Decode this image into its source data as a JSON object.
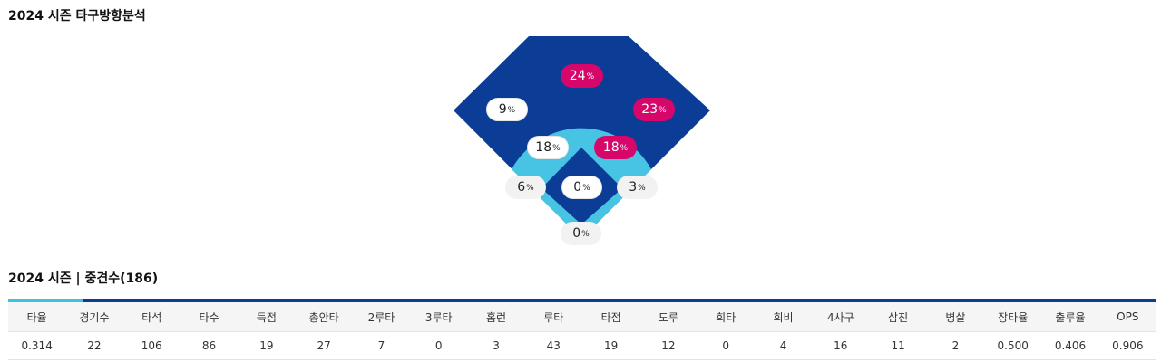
{
  "spray": {
    "title": "2024 시즌 타구방향분석",
    "unit": "%",
    "colors": {
      "outfield": "#0c3d96",
      "infield_ring": "#47c3e4",
      "infield_diamond": "#0c3d96",
      "hot_badge": "#d6066b"
    },
    "zones": [
      {
        "id": "center-field",
        "value": "24",
        "style": "hot"
      },
      {
        "id": "left-field",
        "value": "9",
        "style": "normal"
      },
      {
        "id": "right-field",
        "value": "23",
        "style": "hot"
      },
      {
        "id": "shortstop",
        "value": "18",
        "style": "normal"
      },
      {
        "id": "second-base",
        "value": "18",
        "style": "hot"
      },
      {
        "id": "third-base",
        "value": "6",
        "style": "pale"
      },
      {
        "id": "pitcher",
        "value": "0",
        "style": "normal"
      },
      {
        "id": "first-base",
        "value": "3",
        "style": "pale"
      },
      {
        "id": "catcher",
        "value": "0",
        "style": "pale"
      }
    ]
  },
  "stats": {
    "title": "2024 시즌 | 중견수(186)",
    "headers": [
      "타율",
      "경기수",
      "타석",
      "타수",
      "득점",
      "총안타",
      "2루타",
      "3루타",
      "홈런",
      "루타",
      "타점",
      "도루",
      "희타",
      "희비",
      "4사구",
      "삼진",
      "병살",
      "장타율",
      "출루율",
      "OPS"
    ],
    "values": [
      "0.314",
      "22",
      "106",
      "86",
      "19",
      "27",
      "7",
      "0",
      "3",
      "43",
      "19",
      "12",
      "0",
      "4",
      "16",
      "11",
      "2",
      "0.500",
      "0.406",
      "0.906"
    ]
  }
}
